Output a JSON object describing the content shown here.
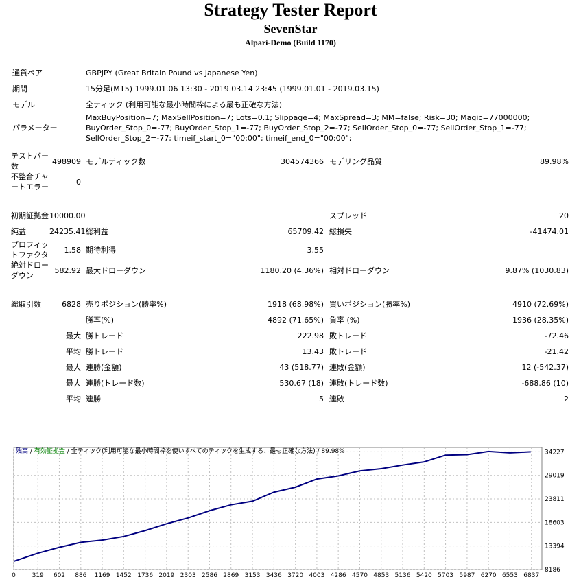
{
  "header": {
    "title": "Strategy Tester Report",
    "expert": "SevenStar",
    "server": "Alpari-Demo (Build 1170)"
  },
  "info": [
    {
      "label": "通貨ペア",
      "value": "GBPJPY (Great Britain Pound vs Japanese Yen)"
    },
    {
      "label": "期間",
      "value": "15分足(M15) 1999.01.06 13:30 - 2019.03.14 23:45 (1999.01.01 - 2019.03.15)"
    },
    {
      "label": "モデル",
      "value": "全ティック (利用可能な最小時間枠による最も正確な方法)"
    },
    {
      "label": "パラメーター",
      "value": "MaxBuyPosition=7; MaxSellPosition=7; Lots=0.1; Slippage=4; MaxSpread=3; MM=false; Risk=30; Magic=77000000; BuyOrder_Stop_0=-77; BuyOrder_Stop_1=-77; BuyOrder_Stop_2=-77; SellOrder_Stop_0=-77; SellOrder_Stop_1=-77; SellOrder_Stop_2=-77; timeif_start_0=\"00:00\"; timeif_end_0=\"00:00\";"
    }
  ],
  "stats": [
    [
      "テストバー数",
      "498909",
      "モデルティック数",
      "304574366",
      "モデリング品質",
      "89.98%"
    ],
    [
      "不整合チャートエラー",
      "0",
      null,
      null,
      null,
      null
    ],
    [
      "初期証拠金",
      "10000.00",
      null,
      null,
      "スプレッド",
      "20"
    ],
    [
      "純益",
      "24235.41",
      "総利益",
      "65709.42",
      "総損失",
      "-41474.01"
    ],
    [
      "プロフィットファクタ",
      "1.58",
      "期待利得",
      "3.55",
      null,
      null
    ],
    [
      "絶対ドローダウン",
      "582.92",
      "最大ドローダウン",
      "1180.20 (4.36%)",
      "相対ドローダウン",
      "9.87% (1030.83)"
    ],
    [
      "総取引数",
      "6828",
      "売りポジション(勝率%)",
      "1918 (68.98%)",
      "買いポジション(勝率%)",
      "4910 (72.69%)"
    ],
    [
      null,
      null,
      "勝率(%)",
      "4892 (71.65%)",
      "負率 (%)",
      "1936 (28.35%)"
    ],
    [
      null,
      "最大",
      "勝トレード",
      "222.98",
      "敗トレード",
      "-72.46"
    ],
    [
      null,
      "平均",
      "勝トレード",
      "13.43",
      "敗トレード",
      "-21.42"
    ],
    [
      null,
      "最大",
      "連勝(金額)",
      "43 (518.77)",
      "連敗(金額)",
      "12 (-542.37)"
    ],
    [
      null,
      "最大",
      "連勝(トレード数)",
      "530.67 (18)",
      "連敗(トレード数)",
      "-688.86 (10)"
    ],
    [
      null,
      "平均",
      "連勝",
      "5",
      "連敗",
      "2"
    ]
  ],
  "chart_data": {
    "type": "line",
    "separator": "/",
    "notes": [
      {
        "text": "有効証拠金",
        "color": "#008000"
      },
      {
        "text": "全ティック(利用可能な最小時間枠を使いすべてのティックを生成する、最も正確な方法)",
        "color": "#000000"
      },
      {
        "text": "89.98%",
        "color": "#000000"
      }
    ],
    "x": [
      0,
      319,
      602,
      886,
      1169,
      1452,
      1736,
      2019,
      2303,
      2586,
      2869,
      3153,
      3436,
      3720,
      4003,
      4286,
      4570,
      4853,
      5136,
      5420,
      5703,
      5987,
      6270,
      6553,
      6828
    ],
    "series": [
      {
        "name": "残高",
        "color": "#000080",
        "values": [
          10000,
          11800,
          13100,
          14200,
          14700,
          15500,
          16800,
          18300,
          19600,
          21200,
          22500,
          23300,
          25300,
          26400,
          28200,
          28900,
          30000,
          30500,
          31300,
          32000,
          33500,
          33600,
          34300,
          34000,
          34235
        ]
      }
    ],
    "xlim": [
      0,
      6975
    ],
    "ylim": [
      8186,
      35200
    ],
    "xticks": [
      0,
      319,
      602,
      886,
      1169,
      1452,
      1736,
      2019,
      2303,
      2586,
      2869,
      3153,
      3436,
      3720,
      4003,
      4286,
      4570,
      4853,
      5136,
      5420,
      5703,
      5987,
      6270,
      6553,
      6837
    ],
    "yticks": [
      8186,
      13394,
      18603,
      23811,
      29019,
      34227
    ],
    "grid": true
  }
}
